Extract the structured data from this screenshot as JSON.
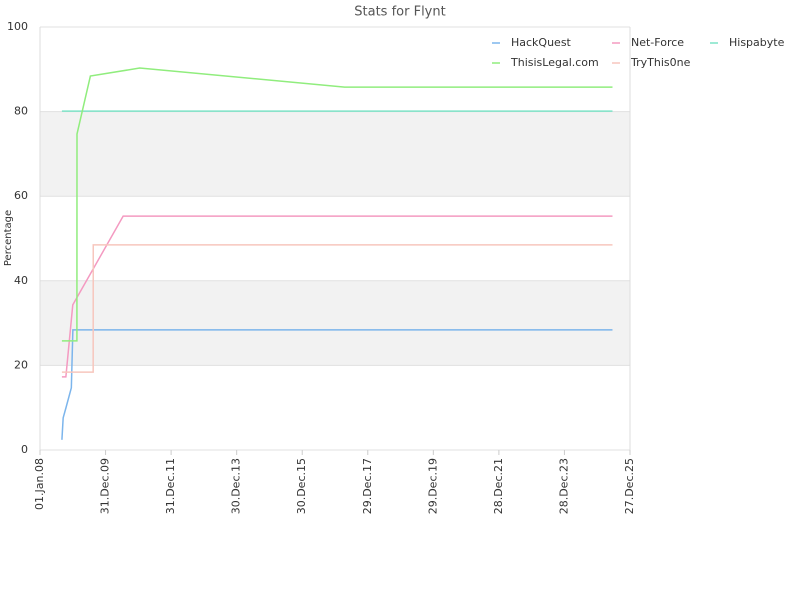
{
  "chart_data": {
    "type": "line",
    "title": "Stats for Flynt",
    "y_label": "Percentage",
    "ylim": [
      0,
      100
    ],
    "yticks": [
      0,
      20,
      40,
      60,
      80,
      100
    ],
    "grid": true,
    "alternate_bands": true,
    "xlim": [
      "2008-01-01",
      "2025-12-27"
    ],
    "xticks": [
      {
        "value": "2008-01-01",
        "label": "01.Jan.08"
      },
      {
        "value": "2009-12-31",
        "label": "31.Dec.09"
      },
      {
        "value": "2011-12-31",
        "label": "31.Dec.11"
      },
      {
        "value": "2013-12-30",
        "label": "30.Dec.13"
      },
      {
        "value": "2015-12-30",
        "label": "30.Dec.15"
      },
      {
        "value": "2017-12-29",
        "label": "29.Dec.17"
      },
      {
        "value": "2019-12-29",
        "label": "29.Dec.19"
      },
      {
        "value": "2021-12-28",
        "label": "28.Dec.21"
      },
      {
        "value": "2023-12-28",
        "label": "28.Dec.23"
      },
      {
        "value": "2025-12-27",
        "label": "27.Dec.25"
      }
    ],
    "legend": "top-right",
    "series": [
      {
        "name": "HackQuest",
        "color": "#7cb5ec",
        "x": [
          "2008-09-01",
          "2008-09-15",
          "2008-10-15",
          "2008-12-15",
          "2009-01-01",
          "2025-06-15"
        ],
        "values": [
          2.4,
          7.6,
          9.9,
          14.7,
          28.4,
          28.4
        ]
      },
      {
        "name": "Net-Force",
        "color": "#f49ac1",
        "x": [
          "2008-09-01",
          "2008-10-15",
          "2008-12-31",
          "2010-07-15",
          "2025-06-15"
        ],
        "values": [
          17.3,
          17.3,
          34.3,
          55.3,
          55.3
        ]
      },
      {
        "name": "Hispabyte",
        "color": "#7ee3c7",
        "x": [
          "2008-09-01",
          "2025-06-15"
        ],
        "values": [
          80.1,
          80.1
        ]
      },
      {
        "name": "ThisisLegal.com",
        "color": "#90ed7d",
        "x": [
          "2008-09-01",
          "2009-02-15",
          "2009-02-16",
          "2009-07-15",
          "2011-01-15",
          "2017-04-15",
          "2025-06-15"
        ],
        "values": [
          25.8,
          25.8,
          74.7,
          88.4,
          90.3,
          85.8,
          85.8
        ]
      },
      {
        "name": "TryThis0ne",
        "color": "#f7c6bd",
        "x": [
          "2008-09-01",
          "2009-08-15",
          "2009-08-16",
          "2025-06-15"
        ],
        "values": [
          18.4,
          18.4,
          48.5,
          48.5
        ]
      }
    ]
  }
}
